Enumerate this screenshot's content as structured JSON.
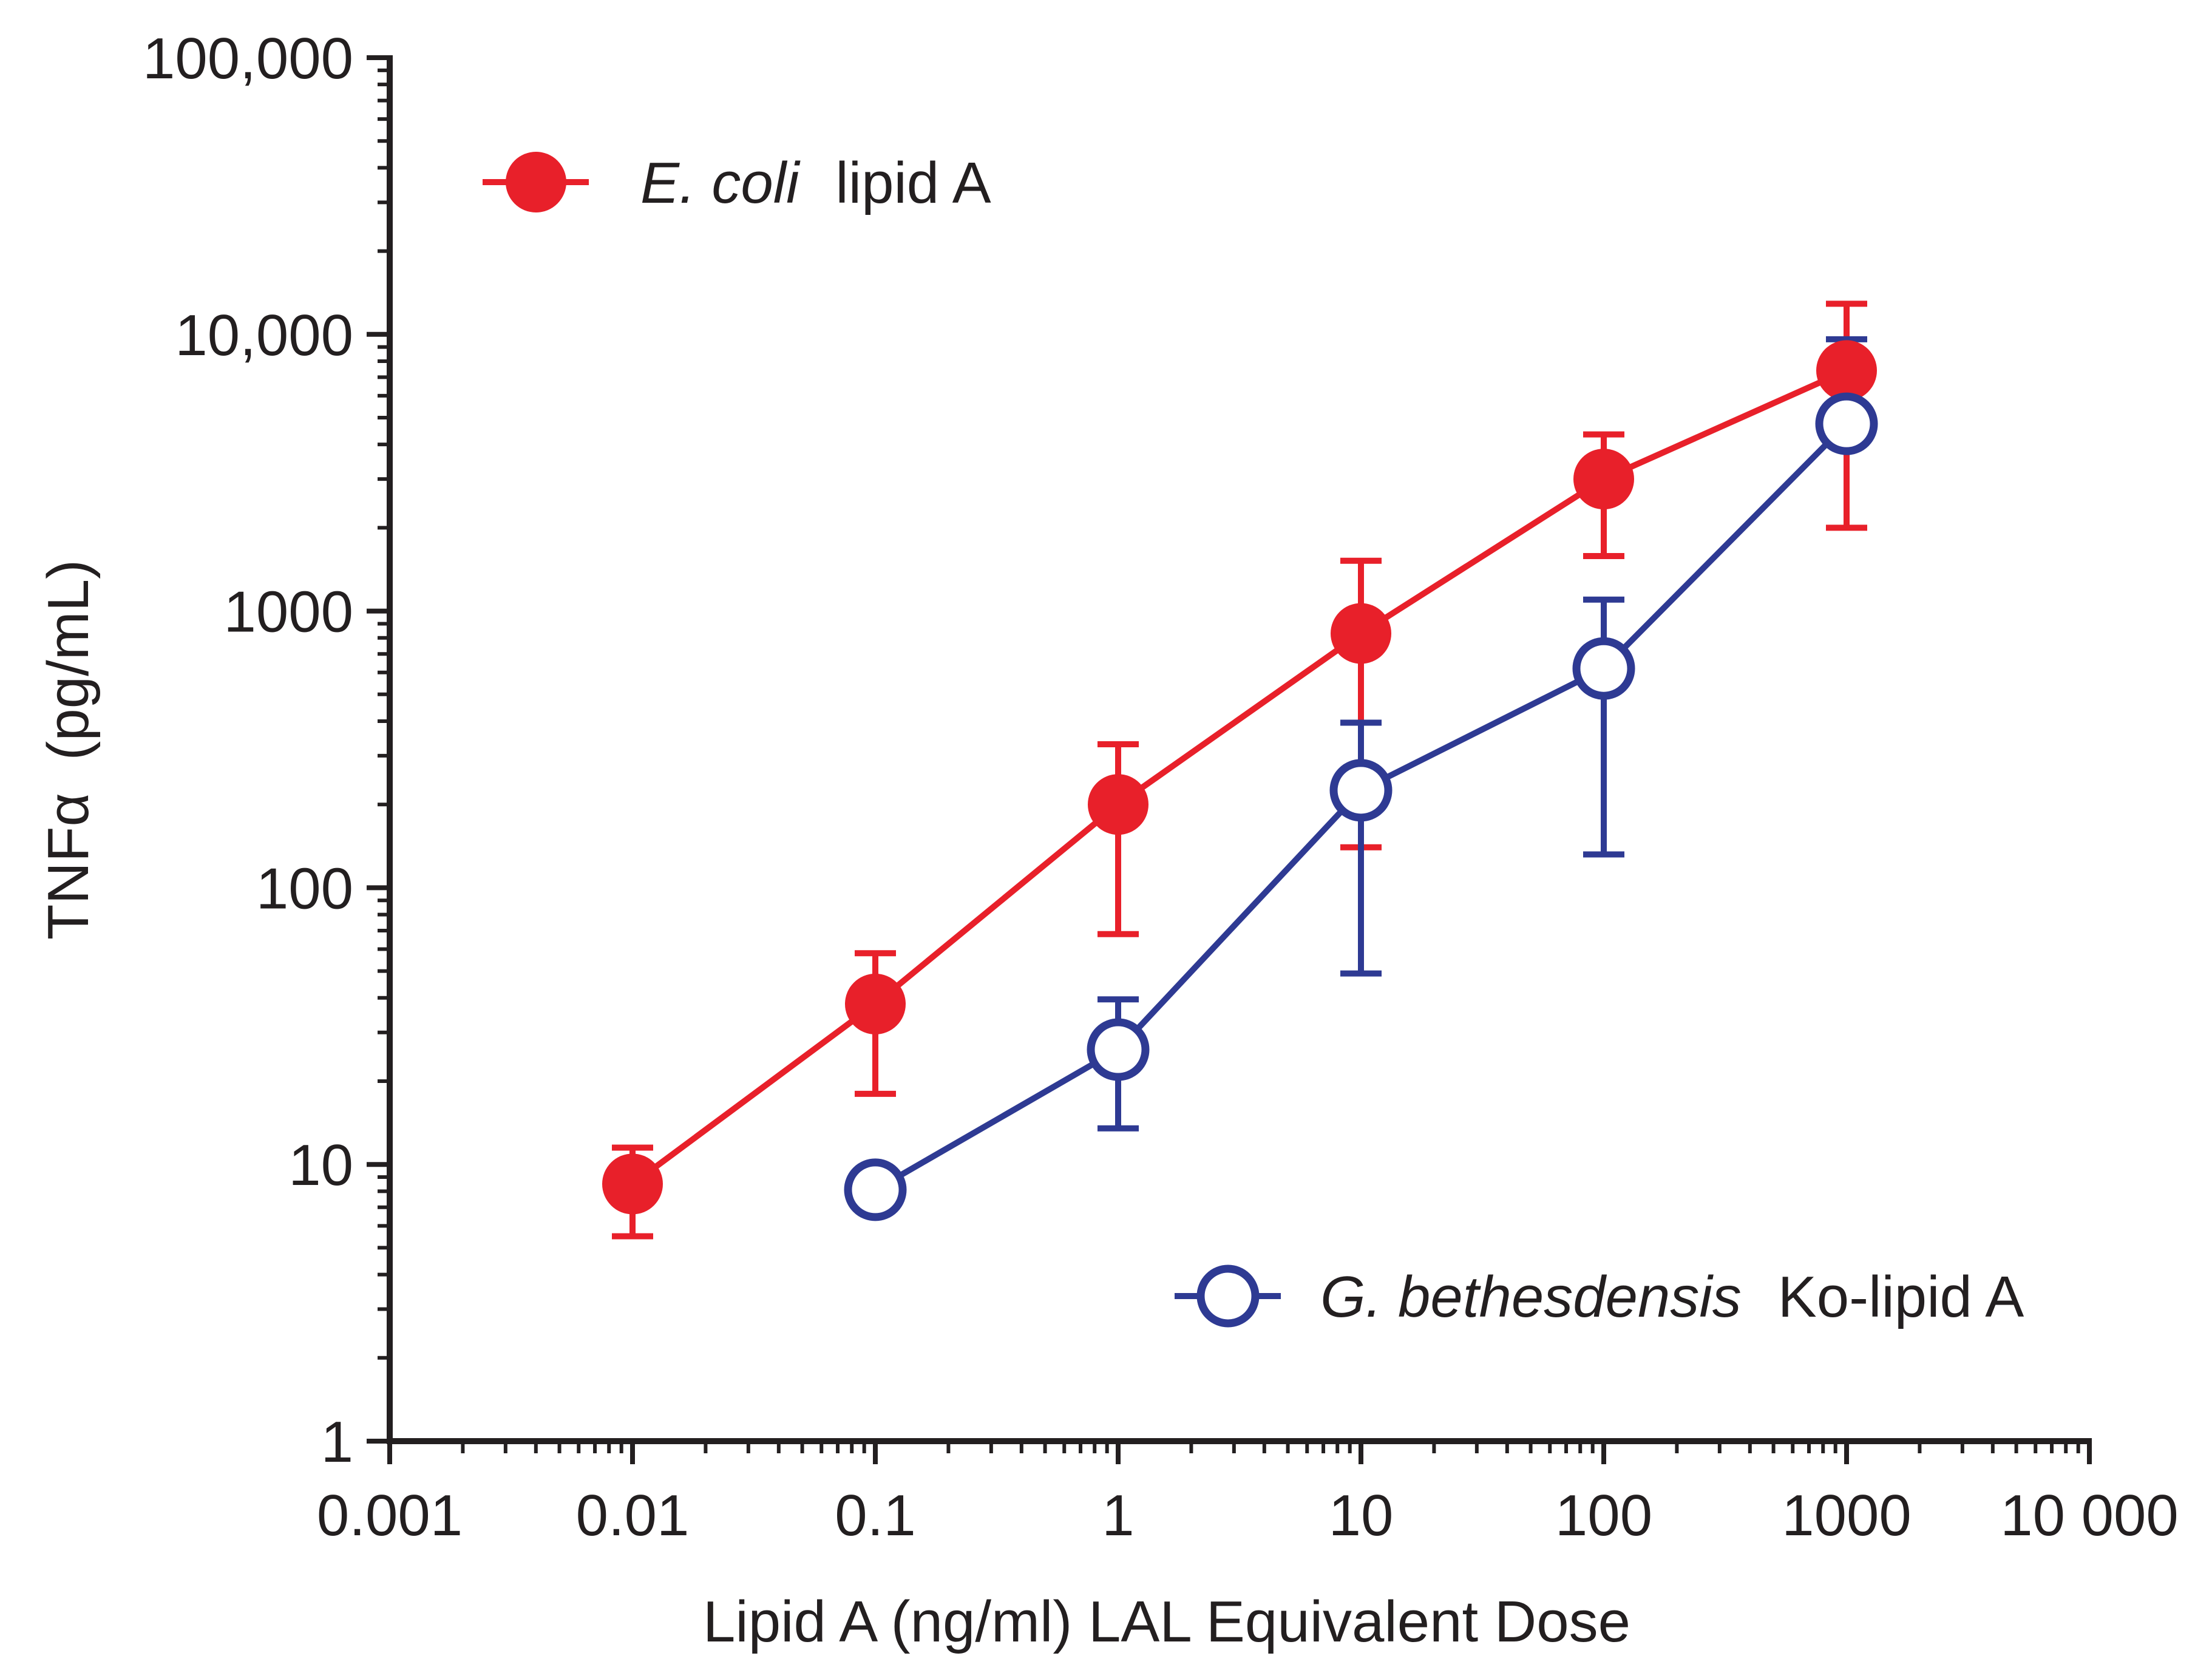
{
  "chart_data": {
    "type": "line",
    "title": "",
    "xlabel": "Lipid A (ng/ml) LAL Equivalent Dose",
    "ylabel": "TNFα  (pg/mL)",
    "xscale": "log",
    "yscale": "log",
    "xlim": [
      0.001,
      10000
    ],
    "ylim": [
      1,
      100000
    ],
    "x_ticks": [
      {
        "value": 0.001,
        "label": "0.001"
      },
      {
        "value": 0.01,
        "label": "0.01"
      },
      {
        "value": 0.1,
        "label": "0.1"
      },
      {
        "value": 1,
        "label": "1"
      },
      {
        "value": 10,
        "label": "10"
      },
      {
        "value": 100,
        "label": "100"
      },
      {
        "value": 1000,
        "label": "1000"
      },
      {
        "value": 10000,
        "label": "10 000"
      }
    ],
    "y_ticks": [
      {
        "value": 1,
        "label": "1"
      },
      {
        "value": 10,
        "label": "10"
      },
      {
        "value": 100,
        "label": "100"
      },
      {
        "value": 1000,
        "label": "1000"
      },
      {
        "value": 10000,
        "label": "10,000"
      },
      {
        "value": 100000,
        "label": "100,000"
      }
    ],
    "grid": false,
    "series": [
      {
        "name_italic": "E. coli",
        "name_rest": "lipid A",
        "color": "#e8202a",
        "marker": "filled-circle",
        "legend_position": "top-left",
        "points": [
          {
            "x": 0.01,
            "y": 8.5,
            "err_low": 5.5,
            "err_high": 11.5
          },
          {
            "x": 0.1,
            "y": 38,
            "err_low": 18,
            "err_high": 58
          },
          {
            "x": 1,
            "y": 200,
            "err_low": 68,
            "err_high": 330
          },
          {
            "x": 10,
            "y": 830,
            "err_low": 140,
            "err_high": 1520
          },
          {
            "x": 100,
            "y": 3000,
            "err_low": 1580,
            "err_high": 4350
          },
          {
            "x": 1000,
            "y": 7400,
            "err_low": 2000,
            "err_high": 12900
          }
        ]
      },
      {
        "name_italic": "G. bethesdensis",
        "name_rest": "Ko-lipid A",
        "color": "#2e3a93",
        "marker": "open-circle",
        "legend_position": "bottom-right",
        "points": [
          {
            "x": 0.1,
            "y": 8.1
          },
          {
            "x": 1,
            "y": 26,
            "err_low": 13.5,
            "err_high": 39.5
          },
          {
            "x": 10,
            "y": 225,
            "err_low": 49,
            "err_high": 395
          },
          {
            "x": 100,
            "y": 620,
            "err_low": 132,
            "err_high": 1100
          },
          {
            "x": 1000,
            "y": 4750,
            "err_high": 9600
          }
        ]
      }
    ]
  }
}
